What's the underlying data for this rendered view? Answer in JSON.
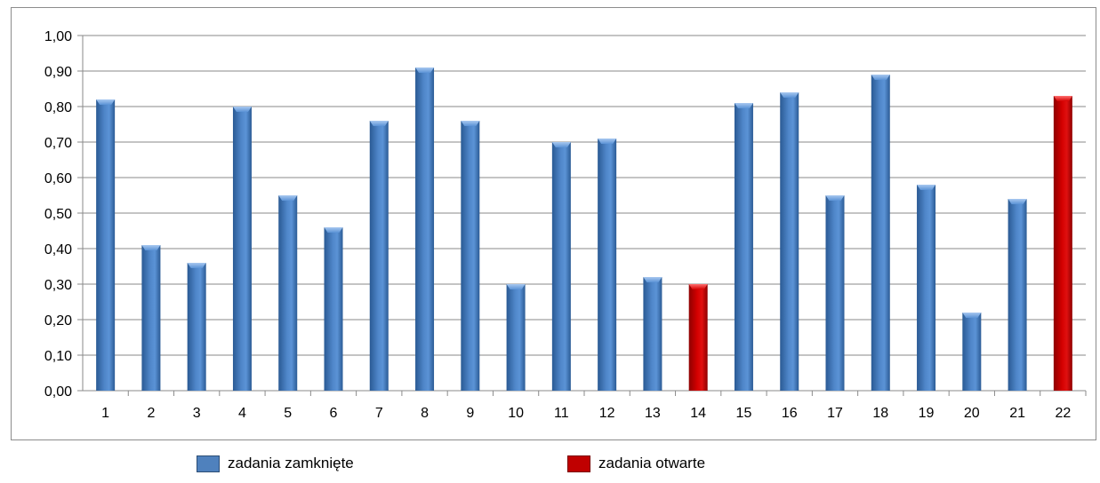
{
  "chart_data": {
    "type": "bar",
    "categories": [
      "1",
      "2",
      "3",
      "4",
      "5",
      "6",
      "7",
      "8",
      "9",
      "10",
      "11",
      "12",
      "13",
      "14",
      "15",
      "16",
      "17",
      "18",
      "19",
      "20",
      "21",
      "22"
    ],
    "values": [
      0.82,
      0.41,
      0.36,
      0.8,
      0.55,
      0.46,
      0.76,
      0.91,
      0.76,
      0.3,
      0.7,
      0.71,
      0.32,
      0.3,
      0.81,
      0.84,
      0.55,
      0.89,
      0.58,
      0.22,
      0.54,
      0.83
    ],
    "series": [
      {
        "name": "zadania zamknięte",
        "categories": [
          "1",
          "2",
          "3",
          "4",
          "5",
          "6",
          "7",
          "8",
          "9",
          "10",
          "11",
          "12",
          "13",
          "15",
          "16",
          "17",
          "18",
          "19",
          "20",
          "21"
        ],
        "color": "#4f81bd"
      },
      {
        "name": "zadania otwarte",
        "categories": [
          "14",
          "22"
        ],
        "color": "#c00000"
      }
    ],
    "ylim": [
      0,
      1
    ],
    "yticks": [
      "0,00",
      "0,10",
      "0,20",
      "0,30",
      "0,40",
      "0,50",
      "0,60",
      "0,70",
      "0,80",
      "0,90",
      "1,00"
    ],
    "grid": true,
    "legend_position": "bottom",
    "title": "",
    "xlabel": "",
    "ylabel": ""
  },
  "legend": {
    "closed_label": "zadania zamknięte",
    "open_label": "zadania otwarte"
  }
}
